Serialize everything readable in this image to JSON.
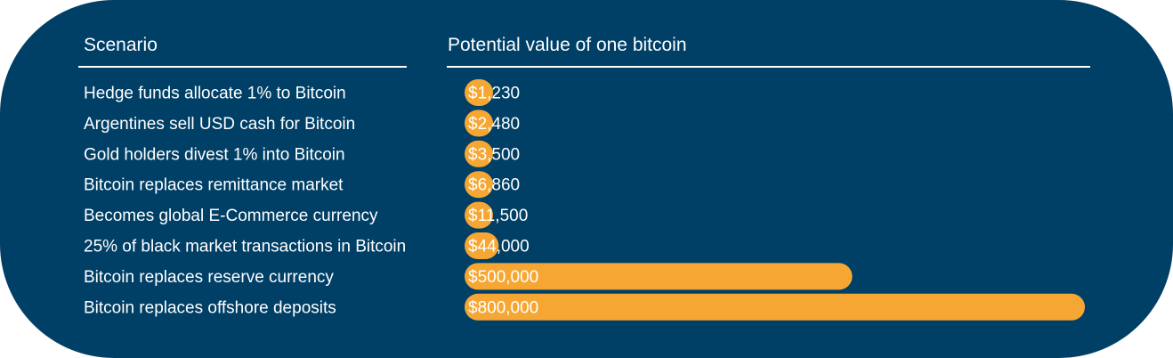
{
  "header": {
    "scenario_label": "Scenario",
    "value_label": "Potential value of one bitcoin"
  },
  "colors": {
    "panel": "#003f66",
    "bar": "#f6a733",
    "text": "#ffffff"
  },
  "chart_data": {
    "type": "bar",
    "orientation": "horizontal",
    "categories": [
      "Hedge funds allocate 1% to Bitcoin",
      "Argentines sell USD cash for Bitcoin",
      "Gold holders divest 1% into Bitcoin",
      "Bitcoin replaces remittance market",
      "Becomes global E-Commerce currency",
      "25% of black market transactions in Bitcoin",
      "Bitcoin replaces reserve currency",
      "Bitcoin replaces offshore deposits"
    ],
    "values": [
      1230,
      2480,
      3500,
      6860,
      11500,
      44000,
      500000,
      800000
    ],
    "value_labels": [
      "$1,230",
      "$2,480",
      "$3,500",
      "$6,860",
      "$11,500",
      "$44,000",
      "$500,000",
      "$800,000"
    ],
    "xlim": [
      0,
      800000
    ],
    "xlabel": "Potential value of one bitcoin",
    "ylabel": "Scenario"
  }
}
